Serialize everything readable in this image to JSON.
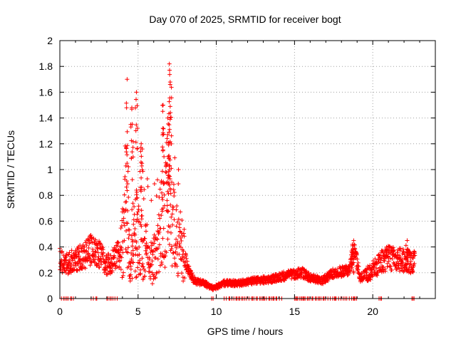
{
  "chart_data": {
    "type": "scatter",
    "title": "Day 070 of 2025, SRMTID for receiver bogt",
    "xlabel": "GPS time / hours",
    "ylabel": "SRMTID / TECUs",
    "xlim": [
      0,
      24
    ],
    "ylim": [
      0,
      2
    ],
    "x_ticks": [
      "0",
      "5",
      "10",
      "15",
      "20"
    ],
    "y_ticks": [
      "0",
      "0.2",
      "0.4",
      "0.6",
      "0.8",
      "1",
      "1.2",
      "1.4",
      "1.6",
      "1.8",
      "2"
    ],
    "grid": true,
    "marker": "+",
    "color": "#ff0000",
    "series": [
      {
        "name": "SRMTID",
        "approx_profile": [
          [
            0.0,
            0.3
          ],
          [
            0.5,
            0.27
          ],
          [
            1.0,
            0.3
          ],
          [
            1.5,
            0.33
          ],
          [
            2.0,
            0.38
          ],
          [
            2.5,
            0.35
          ],
          [
            3.0,
            0.25
          ],
          [
            3.5,
            0.32
          ],
          [
            3.9,
            0.35
          ],
          [
            4.2,
            0.62
          ],
          [
            4.5,
            0.28
          ],
          [
            5.0,
            0.45
          ],
          [
            5.4,
            0.38
          ],
          [
            6.0,
            0.3
          ],
          [
            6.5,
            0.6
          ],
          [
            7.0,
            0.7
          ],
          [
            7.4,
            0.48
          ],
          [
            7.8,
            0.4
          ],
          [
            8.2,
            0.22
          ],
          [
            8.6,
            0.14
          ],
          [
            9.2,
            0.12
          ],
          [
            9.8,
            0.08
          ],
          [
            10.5,
            0.12
          ],
          [
            11.5,
            0.12
          ],
          [
            12.5,
            0.14
          ],
          [
            13.5,
            0.15
          ],
          [
            14.5,
            0.18
          ],
          [
            15.5,
            0.2
          ],
          [
            16.0,
            0.16
          ],
          [
            16.8,
            0.14
          ],
          [
            17.5,
            0.2
          ],
          [
            18.5,
            0.22
          ],
          [
            18.8,
            0.4
          ],
          [
            19.2,
            0.16
          ],
          [
            20.0,
            0.22
          ],
          [
            20.5,
            0.28
          ],
          [
            21.0,
            0.32
          ],
          [
            21.5,
            0.3
          ],
          [
            22.0,
            0.3
          ],
          [
            22.6,
            0.28
          ]
        ],
        "peaks": [
          [
            4.3,
            1.7
          ],
          [
            4.6,
            1.48
          ],
          [
            4.9,
            1.6
          ],
          [
            5.2,
            1.2
          ],
          [
            6.6,
            1.5
          ],
          [
            6.9,
            1.4
          ],
          [
            7.0,
            1.82
          ],
          [
            7.05,
            1.66
          ],
          [
            18.7,
            0.42
          ],
          [
            22.2,
            0.45
          ]
        ],
        "dropouts_to_zero": [
          [
            0.1,
            0.9
          ],
          [
            2.0,
            2.4
          ],
          [
            3.0,
            3.8
          ],
          [
            9.7,
            9.9
          ],
          [
            10.5,
            14.3
          ],
          [
            15.0,
            19.0
          ],
          [
            20.4,
            20.6
          ],
          [
            22.5,
            22.7
          ]
        ],
        "x_end": 22.7
      }
    ]
  }
}
